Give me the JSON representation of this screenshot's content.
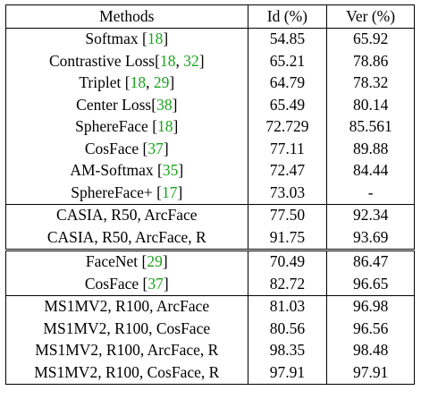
{
  "header": {
    "methods": "Methods",
    "id": "Id (%)",
    "ver": "Ver (%)"
  },
  "rows": [
    {
      "method": "Softmax ",
      "cites": [
        "18"
      ],
      "suffix": "",
      "id": "54.85",
      "ver": "65.92"
    },
    {
      "method": "Contrastive Loss",
      "cites": [
        "18",
        "32"
      ],
      "suffix": "",
      "id": "65.21",
      "ver": "78.86"
    },
    {
      "method": "Triplet ",
      "cites": [
        "18",
        "29"
      ],
      "suffix": "",
      "id": "64.79",
      "ver": "78.32"
    },
    {
      "method": "Center Loss",
      "cites": [
        "38"
      ],
      "suffix": "",
      "id": "65.49",
      "ver": "80.14"
    },
    {
      "method": "SphereFace ",
      "cites": [
        "18"
      ],
      "suffix": "",
      "id": "72.729",
      "ver": "85.561"
    },
    {
      "method": "CosFace ",
      "cites": [
        "37"
      ],
      "suffix": "",
      "id": "77.11",
      "ver": "89.88"
    },
    {
      "method": "AM-Softmax ",
      "cites": [
        "35"
      ],
      "suffix": "",
      "id": "72.47",
      "ver": "84.44"
    },
    {
      "method": "SphereFace+ ",
      "cites": [
        "17"
      ],
      "suffix": "",
      "id": "73.03",
      "ver": "-"
    },
    {
      "method": "CASIA, R50, ArcFace",
      "cites": [],
      "suffix": "",
      "id": "77.50",
      "ver": "92.34"
    },
    {
      "method": "CASIA, R50, ArcFace, R",
      "cites": [],
      "suffix": "",
      "id": "91.75",
      "ver": "93.69"
    },
    {
      "method": "FaceNet ",
      "cites": [
        "29"
      ],
      "suffix": "",
      "id": "70.49",
      "ver": "86.47"
    },
    {
      "method": "CosFace ",
      "cites": [
        "37"
      ],
      "suffix": "",
      "id": "82.72",
      "ver": "96.65"
    },
    {
      "method": "MS1MV2, R100, ArcFace",
      "cites": [],
      "suffix": "",
      "id": "81.03",
      "ver": "96.98"
    },
    {
      "method": "MS1MV2, R100, CosFace",
      "cites": [],
      "suffix": "",
      "id": "80.56",
      "ver": "96.56"
    },
    {
      "method": "MS1MV2, R100, ArcFace, R",
      "cites": [],
      "suffix": "",
      "id": "98.35",
      "ver": "98.48"
    },
    {
      "method": "MS1MV2, R100, CosFace, R",
      "cites": [],
      "suffix": "",
      "id": "97.91",
      "ver": "97.91"
    }
  ],
  "colors": {
    "citation": "#1aa31a",
    "rule": "#000000"
  }
}
